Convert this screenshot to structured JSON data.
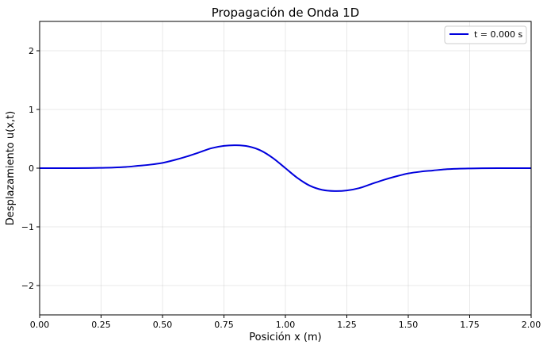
{
  "chart_data": {
    "type": "line",
    "title": "Propagación de Onda 1D",
    "xlabel": "Posición x (m)",
    "ylabel": "Desplazamiento u(x,t)",
    "xlim": [
      0,
      2
    ],
    "ylim": [
      -2.5,
      2.5
    ],
    "grid": true,
    "legend_position": "top-right",
    "x_ticks": [
      0,
      0.25,
      0.5,
      0.75,
      1.0,
      1.25,
      1.5,
      1.75,
      2.0
    ],
    "x_tick_labels": [
      "0.00",
      "0.25",
      "0.50",
      "0.75",
      "1.00",
      "1.25",
      "1.50",
      "1.75",
      "2.00"
    ],
    "y_ticks": [
      -2,
      -1,
      0,
      1,
      2
    ],
    "y_tick_labels": [
      "−2",
      "−1",
      "0",
      "1",
      "2"
    ],
    "series": [
      {
        "name": "t = 0.000 s",
        "color": "#0000dd",
        "x": [
          0.0,
          0.1,
          0.2,
          0.25,
          0.3,
          0.35,
          0.4,
          0.45,
          0.5,
          0.55,
          0.6,
          0.65,
          0.7,
          0.75,
          0.8,
          0.85,
          0.9,
          0.95,
          1.0,
          1.05,
          1.1,
          1.15,
          1.2,
          1.25,
          1.3,
          1.35,
          1.4,
          1.45,
          1.5,
          1.55,
          1.6,
          1.65,
          1.7,
          1.75,
          1.8,
          1.9,
          2.0
        ],
        "values": [
          0.0,
          0.0,
          0.002,
          0.005,
          0.01,
          0.02,
          0.04,
          0.06,
          0.09,
          0.14,
          0.2,
          0.27,
          0.34,
          0.38,
          0.39,
          0.37,
          0.3,
          0.17,
          0.0,
          -0.17,
          -0.3,
          -0.37,
          -0.39,
          -0.38,
          -0.34,
          -0.27,
          -0.2,
          -0.14,
          -0.09,
          -0.06,
          -0.04,
          -0.02,
          -0.01,
          -0.005,
          -0.002,
          0.0,
          0.0
        ]
      }
    ]
  }
}
